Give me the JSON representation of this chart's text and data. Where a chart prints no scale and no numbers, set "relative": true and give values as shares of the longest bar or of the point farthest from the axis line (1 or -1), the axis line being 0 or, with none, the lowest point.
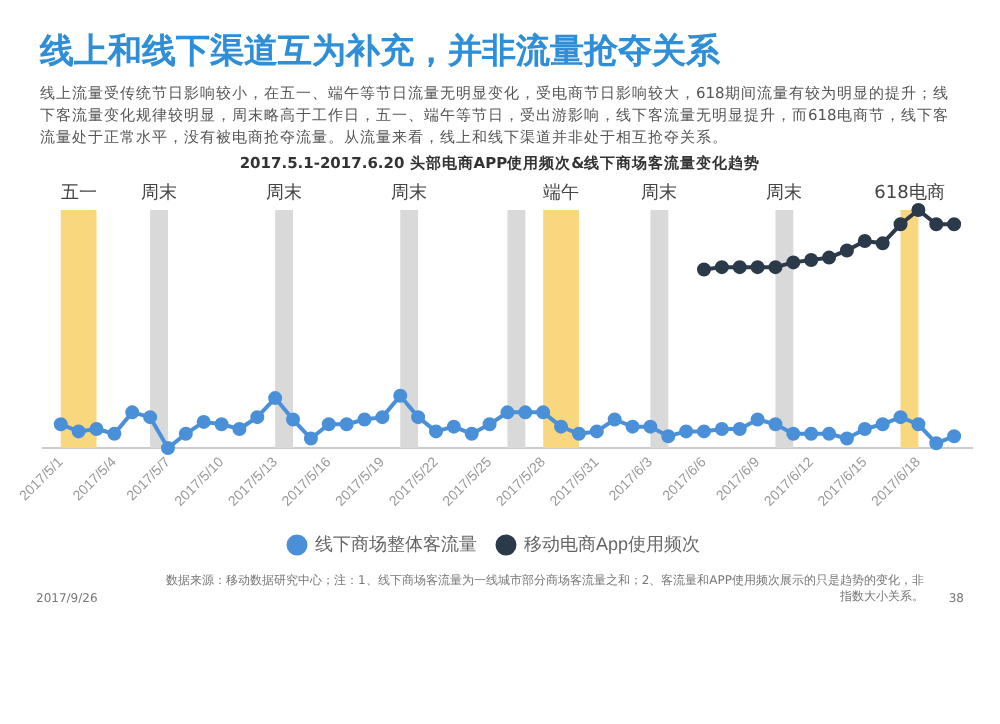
{
  "chart_data": {
    "type": "line",
    "title": "线上和线下渠道互为补充，并非流量抢夺关系",
    "subtitle": "线上流量受传统节日影响较小，在五一、端午等节日流量无明显变化，受电商节日影响较大，618期间流量有较为明显的提升；线下客流量变化规律较明显，周末略高于工作日，五一、端午等节日，受出游影响，线下客流量无明显提升，而618电商节，线下客流量处于正常水平，没有被电商抢夺流量。从流量来看，线上和线下渠道并非处于相互抢夺关系。",
    "annotations": [
      "2017.5.1-2017.6.20 头部电商APP使用频次&线下商场客流量变化趋势",
      "数据来源：移动数据研究中心；注：1、线下商场客流量为一线城市部分商场客流量之和；2、客流量和APP使用频次展示的只是趋势的变化，非指数大小关系。",
      "2017/9/26",
      "38"
    ],
    "relative": true,
    "x": [
      "2017-05-01",
      "2017-05-02",
      "2017-05-03",
      "2017-05-04",
      "2017-05-05",
      "2017-05-06",
      "2017-05-07",
      "2017-05-08",
      "2017-05-09",
      "2017-05-10",
      "2017-05-11",
      "2017-05-12",
      "2017-05-13",
      "2017-05-14",
      "2017-05-15",
      "2017-05-16",
      "2017-05-17",
      "2017-05-18",
      "2017-05-19",
      "2017-05-20",
      "2017-05-21",
      "2017-05-22",
      "2017-05-23",
      "2017-05-24",
      "2017-05-25",
      "2017-05-26",
      "2017-05-27",
      "2017-05-28",
      "2017-05-29",
      "2017-05-30",
      "2017-05-31",
      "2017-06-01",
      "2017-06-02",
      "2017-06-03",
      "2017-06-04",
      "2017-06-05",
      "2017-06-06",
      "2017-06-07",
      "2017-06-08",
      "2017-06-09",
      "2017-06-10",
      "2017-06-11",
      "2017-06-12",
      "2017-06-13",
      "2017-06-14",
      "2017-06-15",
      "2017-06-16",
      "2017-06-17",
      "2017-06-18",
      "2017-06-19",
      "2017-06-20"
    ],
    "xlim": [
      "2017-04-30",
      "2017-06-21"
    ],
    "xticks": [
      {
        "value": "2017-05-01",
        "label": "2017/5/1"
      },
      {
        "value": "2017-05-04",
        "label": "2017/5/4"
      },
      {
        "value": "2017-05-07",
        "label": "2017/5/7"
      },
      {
        "value": "2017-05-10",
        "label": "2017/5/10"
      },
      {
        "value": "2017-05-13",
        "label": "2017/5/13"
      },
      {
        "value": "2017-05-16",
        "label": "2017/5/16"
      },
      {
        "value": "2017-05-19",
        "label": "2017/5/19"
      },
      {
        "value": "2017-05-22",
        "label": "2017/5/22"
      },
      {
        "value": "2017-05-25",
        "label": "2017/5/25"
      },
      {
        "value": "2017-05-28",
        "label": "2017/5/28"
      },
      {
        "value": "2017-05-31",
        "label": "2017/5/31"
      },
      {
        "value": "2017-06-03",
        "label": "2017/6/3"
      },
      {
        "value": "2017-06-06",
        "label": "2017/6/6"
      },
      {
        "value": "2017-06-09",
        "label": "2017/6/9"
      },
      {
        "value": "2017-06-12",
        "label": "2017/6/12"
      },
      {
        "value": "2017-06-15",
        "label": "2017/6/15"
      },
      {
        "value": "2017-06-18",
        "label": "2017/6/18"
      }
    ],
    "series": [
      {
        "name": "线下商场整体客流量",
        "color": "#4a90d9",
        "values": [
          0.1,
          0.07,
          0.08,
          0.06,
          0.15,
          0.13,
          0,
          0.06,
          0.11,
          0.1,
          0.08,
          0.13,
          0.21,
          0.12,
          0.04,
          0.1,
          0.1,
          0.12,
          0.13,
          0.22,
          0.13,
          0.07,
          0.09,
          0.06,
          0.1,
          0.15,
          0.15,
          0.15,
          0.09,
          0.06,
          0.07,
          0.12,
          0.09,
          0.09,
          0.05,
          0.07,
          0.07,
          0.08,
          0.08,
          0.12,
          0.1,
          0.06,
          0.06,
          0.06,
          0.04,
          0.08,
          0.1,
          0.13,
          0.1,
          0.02,
          0.05
        ]
      },
      {
        "name": "移动电商App使用频次",
        "color": "#2b3a4a",
        "values": [
          null,
          null,
          null,
          null,
          null,
          null,
          null,
          null,
          null,
          null,
          null,
          null,
          null,
          null,
          null,
          null,
          null,
          null,
          null,
          null,
          null,
          null,
          null,
          null,
          null,
          null,
          null,
          null,
          null,
          null,
          null,
          null,
          null,
          null,
          null,
          null,
          0.75,
          0.76,
          0.76,
          0.76,
          0.76,
          0.78,
          0.79,
          0.8,
          0.83,
          0.87,
          0.86,
          0.94,
          1,
          0.94,
          0.94
        ]
      }
    ],
    "bands": [
      {
        "axis": "x",
        "from": "2017-05-01",
        "to": "2017-05-03",
        "label": "五一",
        "color": "#f9d77e"
      },
      {
        "axis": "x",
        "from": "2017-05-06",
        "to": "2017-05-07",
        "label": "周末",
        "color": "#d9d9d9"
      },
      {
        "axis": "x",
        "from": "2017-05-13",
        "to": "2017-05-14",
        "label": "周末",
        "color": "#d9d9d9"
      },
      {
        "axis": "x",
        "from": "2017-05-20",
        "to": "2017-05-21",
        "label": "周末",
        "color": "#d9d9d9"
      },
      {
        "axis": "x",
        "from": "2017-05-26",
        "to": "2017-05-27",
        "color": "#d9d9d9"
      },
      {
        "axis": "x",
        "from": "2017-05-28",
        "to": "2017-05-30",
        "label": "端午",
        "color": "#f9d77e"
      },
      {
        "axis": "x",
        "from": "2017-06-03",
        "to": "2017-06-04",
        "label": "周末",
        "color": "#d9d9d9"
      },
      {
        "axis": "x",
        "from": "2017-06-10",
        "to": "2017-06-11",
        "label": "周末",
        "color": "#d9d9d9"
      },
      {
        "axis": "x",
        "from": "2017-06-17",
        "to": "2017-06-18",
        "label": "618电商",
        "color": "#f9d77e"
      }
    ],
    "legend": "bottom",
    "marker": "circle",
    "line_style": "solid",
    "grid": false
  }
}
